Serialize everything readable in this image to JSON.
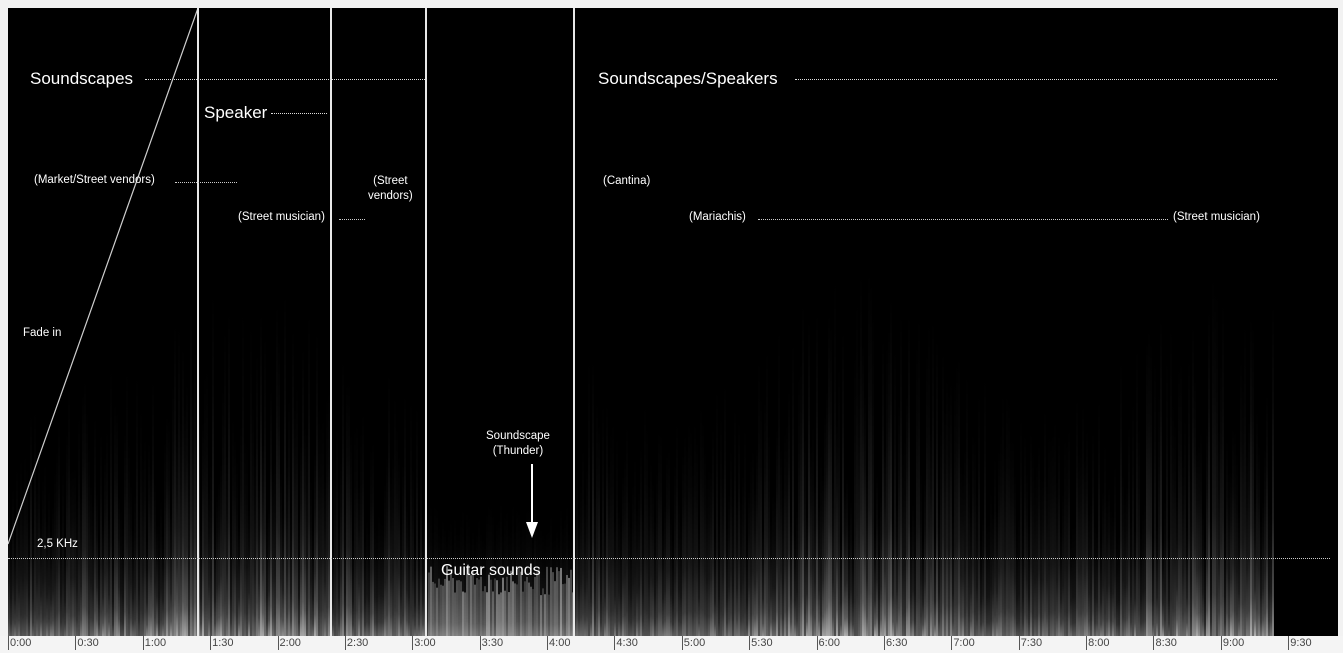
{
  "chart_data": {
    "type": "heatmap",
    "title": "",
    "xlabel": "",
    "ylabel": "",
    "x_unit": "time (m:ss)",
    "xlim": [
      0,
      590
    ],
    "x_ticks": [
      "0:00",
      "0:30",
      "1:00",
      "1:30",
      "2:00",
      "2:30",
      "3:00",
      "3:30",
      "4:00",
      "4:30",
      "5:00",
      "5:30",
      "6:00",
      "6:30",
      "7:00",
      "7:30",
      "8:00",
      "8:30",
      "9:00",
      "9:30"
    ],
    "frequency_marker": {
      "label": "2,5 KHz"
    },
    "section_boundaries_seconds": [
      84,
      143,
      185,
      245
    ],
    "fade_in": {
      "label": "Fade in",
      "start_s": 0,
      "end_s": 84
    },
    "annotations": {
      "soundscapes": "Soundscapes",
      "speaker": "Speaker",
      "market": "(Market/Street vendors)",
      "street_musician_1": "(Street musician)",
      "street_vendors": "(Street\nvendors)",
      "soundscapes_speakers": "Soundscapes/Speakers",
      "cantina": "(Cantina)",
      "mariachis": "(Mariachis)",
      "street_musician_2": "(Street musician)",
      "thunder": "Soundscape\n(Thunder)",
      "guitar": "Guitar sounds"
    },
    "colors": {
      "background": "#000000",
      "spectrum": "#ffffff",
      "axis_bg": "#f4f4f4"
    }
  }
}
